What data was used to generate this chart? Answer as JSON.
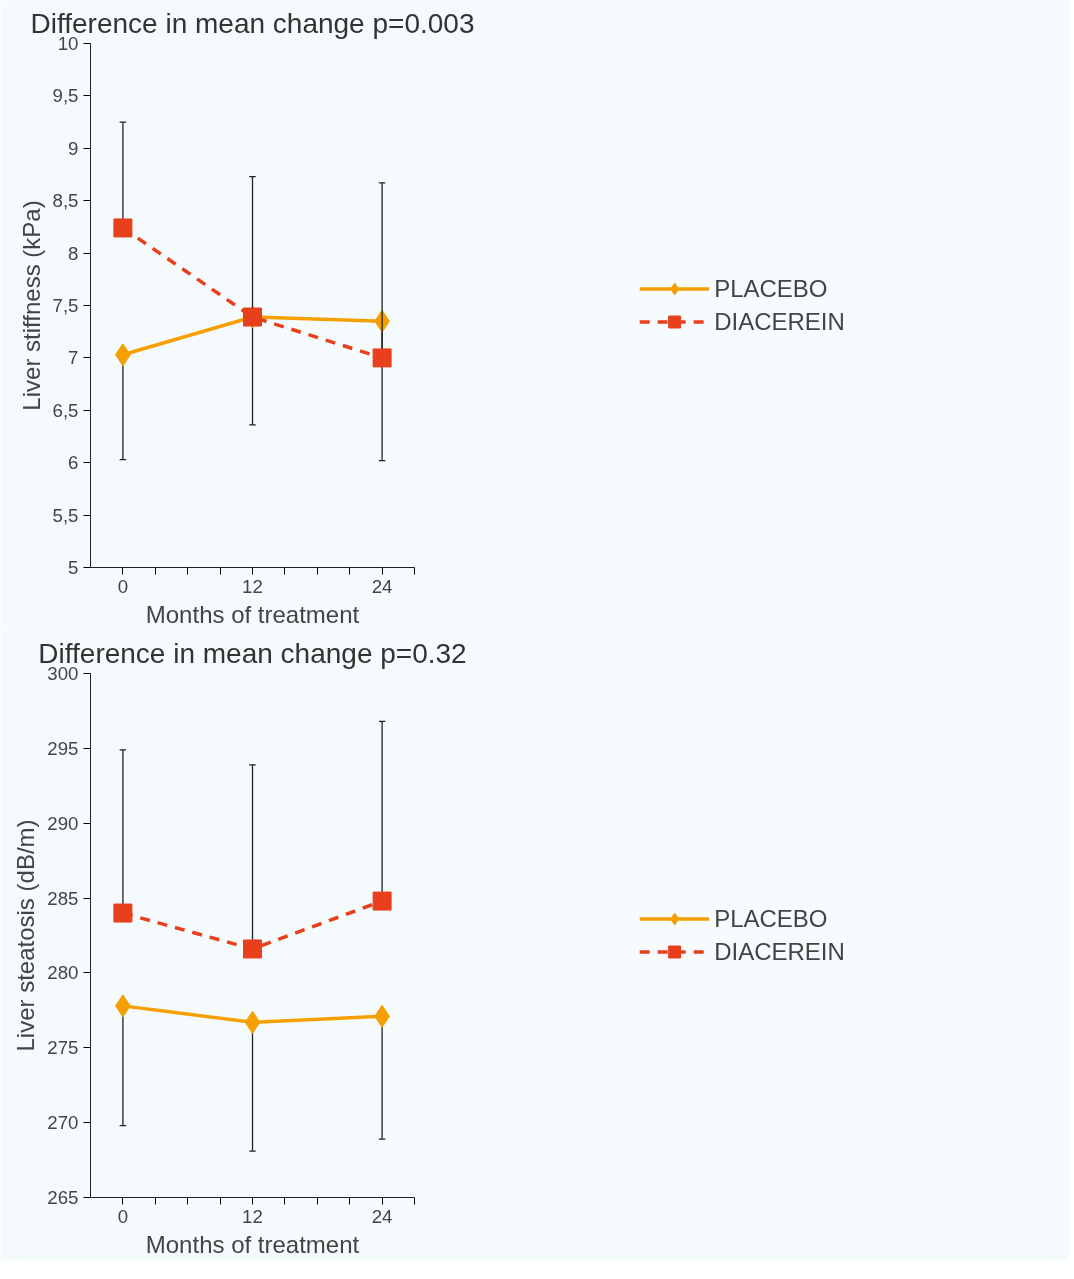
{
  "chart_data": [
    {
      "type": "line",
      "title": "Difference in mean change p=0.003",
      "xlabel": "Months of treatment",
      "ylabel": "Liver stiffness (kPa)",
      "x": [
        0,
        12,
        24
      ],
      "xlim": [
        -3,
        27
      ],
      "xticks": [
        0,
        {
          "value": 3,
          "label": null
        },
        {
          "value": 6,
          "label": null
        },
        {
          "value": 9,
          "label": null
        },
        12,
        {
          "value": 15,
          "label": null
        },
        {
          "value": 18,
          "label": null
        },
        {
          "value": 21,
          "label": null
        },
        24,
        {
          "value": 27,
          "label": null
        }
      ],
      "ylim": [
        5,
        10
      ],
      "yticks": [
        5,
        {
          "value": 5.5,
          "label": "5,5"
        },
        6,
        {
          "value": 6.5,
          "label": "6,5"
        },
        7,
        {
          "value": 7.5,
          "label": "7,5"
        },
        8,
        {
          "value": 8.5,
          "label": "8,5"
        },
        9,
        {
          "value": 9.5,
          "label": "9,5"
        },
        10
      ],
      "grid": false,
      "legend": "right",
      "series": [
        {
          "name": "PLACEBO",
          "color": "#f5a000",
          "values": [
            7.03,
            7.39,
            7.35
          ],
          "marker": "diamond",
          "line_style": "solid",
          "errors": [
            [
              6.03,
              7.03
            ],
            [
              6.36,
              7.39
            ],
            [
              6.02,
              7.35
            ]
          ]
        },
        {
          "name": "DIACEREIN",
          "color": "#e8401c",
          "values": [
            8.24,
            7.39,
            7.0
          ],
          "marker": "square",
          "line_style": "dashed",
          "errors": [
            [
              8.24,
              9.25
            ],
            [
              7.39,
              8.73
            ],
            [
              7.0,
              8.67
            ]
          ]
        }
      ]
    },
    {
      "type": "line",
      "title": "Difference in mean change p=0.32",
      "xlabel": "Months of treatment",
      "ylabel": "Liver steatosis (dB/m)",
      "x": [
        0,
        12,
        24
      ],
      "xlim": [
        -3,
        27
      ],
      "xticks": [
        0,
        {
          "value": 3,
          "label": null
        },
        {
          "value": 6,
          "label": null
        },
        {
          "value": 9,
          "label": null
        },
        12,
        {
          "value": 15,
          "label": null
        },
        {
          "value": 18,
          "label": null
        },
        {
          "value": 21,
          "label": null
        },
        24,
        {
          "value": 27,
          "label": null
        }
      ],
      "ylim": [
        265,
        300
      ],
      "yticks": [
        265,
        270,
        275,
        280,
        285,
        290,
        295,
        300
      ],
      "grid": false,
      "legend": "right",
      "series": [
        {
          "name": "PLACEBO",
          "color": "#f5a000",
          "values": [
            277.8,
            276.7,
            277.1
          ],
          "marker": "diamond",
          "line_style": "solid",
          "errors": [
            [
              269.8,
              277.8
            ],
            [
              268.1,
              276.7
            ],
            [
              268.9,
              277.1
            ]
          ]
        },
        {
          "name": "DIACEREIN",
          "color": "#e8401c",
          "values": [
            284,
            281.6,
            284.8
          ],
          "marker": "square",
          "line_style": "dashed",
          "errors": [
            [
              284,
              294.9
            ],
            [
              281.6,
              293.9
            ],
            [
              284.8,
              296.8
            ]
          ]
        }
      ]
    }
  ]
}
